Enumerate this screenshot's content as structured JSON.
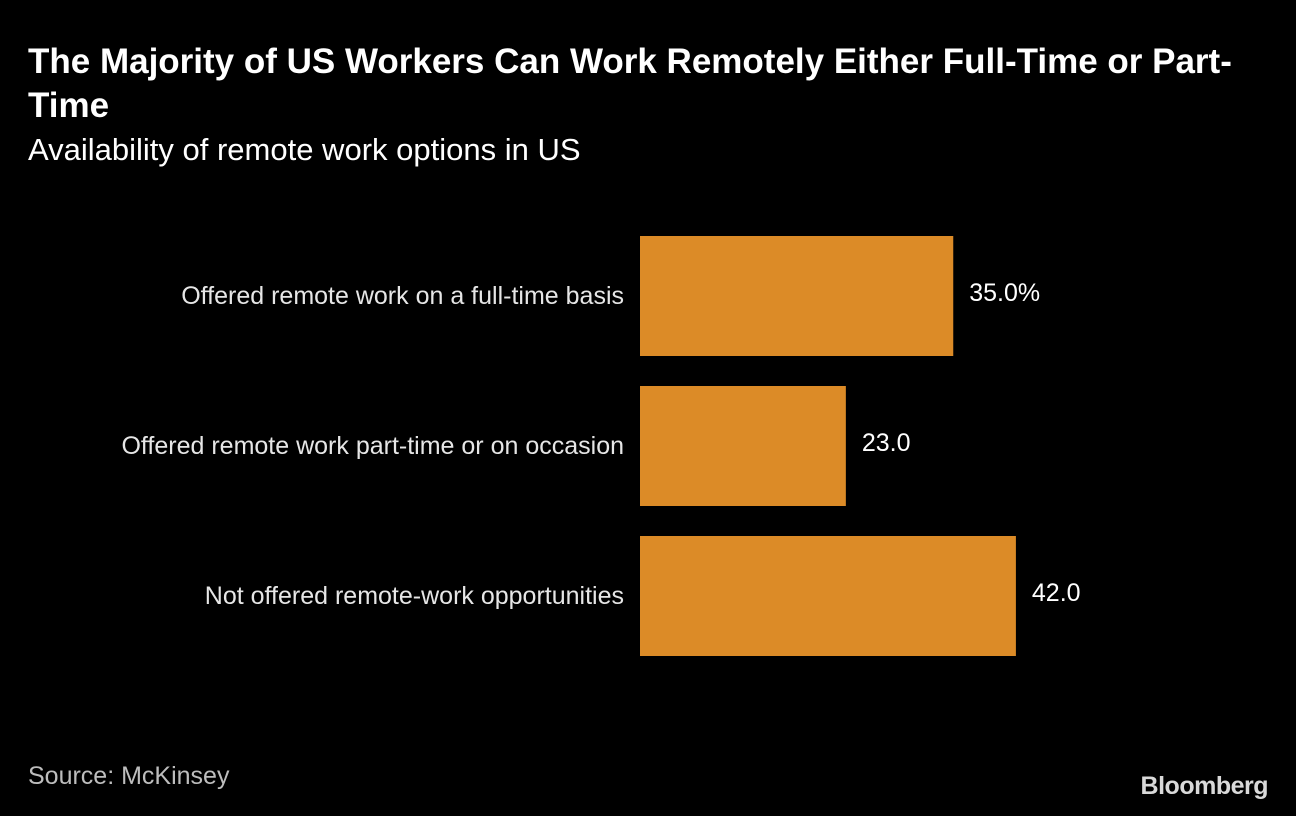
{
  "title": "The Majority of US Workers Can Work Remotely Either Full-Time or Part-Time",
  "subtitle": "Availability of remote work options in US",
  "source": "Source: McKinsey",
  "logo": "Bloomberg",
  "colors": {
    "background": "#000000",
    "bar": "#dc8b27",
    "text": "#ffffff",
    "muted_text": "#bdbdbd"
  },
  "chart_data": {
    "type": "bar",
    "orientation": "horizontal",
    "title": "The Majority of US Workers Can Work Remotely Either Full-Time or Part-Time",
    "subtitle": "Availability of remote work options in US",
    "categories": [
      "Offered remote work on a full-time basis",
      "Offered remote work part-time or on occasion",
      "Not offered remote-work opportunities"
    ],
    "values": [
      35.0,
      23.0,
      42.0
    ],
    "data_labels": [
      "35.0%",
      "23.0",
      "42.0"
    ],
    "unit": "%",
    "xlim": [
      0,
      100
    ],
    "grid": false,
    "legend": "none"
  }
}
